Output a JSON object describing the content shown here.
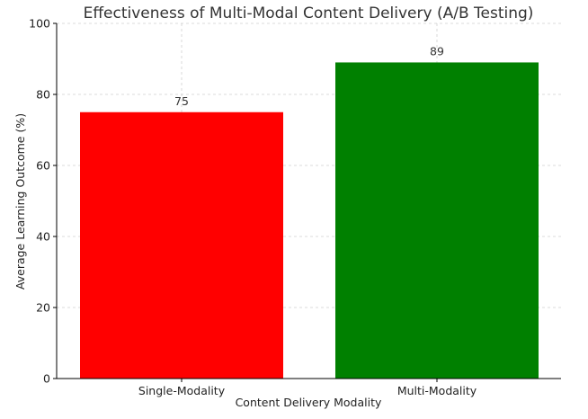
{
  "chart_data": {
    "type": "bar",
    "title": "Effectiveness of Multi-Modal Content Delivery (A/B Testing)",
    "xlabel": "Content Delivery Modality",
    "ylabel": "Average Learning Outcome (%)",
    "categories": [
      "Single-Modality",
      "Multi-Modality"
    ],
    "values": [
      75,
      89
    ],
    "colors": [
      "#ff0000",
      "#008000"
    ],
    "ylim": [
      0,
      100
    ],
    "yticks": [
      0,
      20,
      40,
      60,
      80,
      100
    ],
    "grid": true,
    "data_labels": [
      "75",
      "89"
    ]
  }
}
